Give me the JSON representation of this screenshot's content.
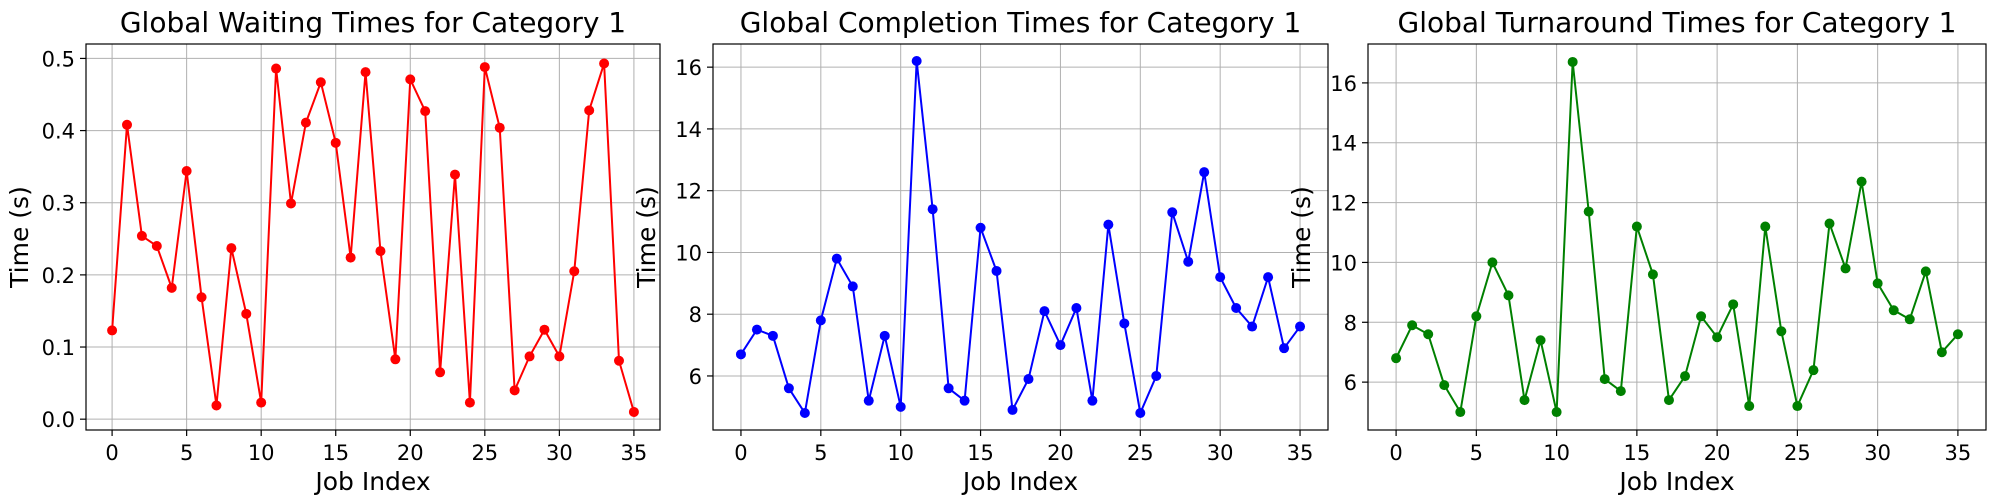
{
  "chart_data": [
    {
      "type": "line",
      "title": "Global Waiting Times for Category 1",
      "xlabel": "Job Index",
      "ylabel": "Time (s)",
      "color": "#ff0000",
      "grid": true,
      "xlim": [
        -1.75,
        36.75
      ],
      "ylim": [
        -0.015,
        0.52
      ],
      "xticks": [
        0,
        5,
        10,
        15,
        20,
        25,
        30,
        35
      ],
      "yticks": [
        0.0,
        0.1,
        0.2,
        0.3,
        0.4,
        0.5
      ],
      "tick_decimals": 1,
      "series": [
        {
          "x": [
            0,
            1,
            2,
            3,
            4,
            5,
            6,
            7,
            8,
            9,
            10,
            11,
            12,
            13,
            14,
            15,
            16,
            17,
            18,
            19,
            20,
            21,
            22,
            23,
            24,
            25,
            26,
            27,
            28,
            29,
            30,
            31,
            32,
            33,
            34,
            35
          ],
          "values": [
            0.123,
            0.408,
            0.254,
            0.24,
            0.182,
            0.344,
            0.169,
            0.019,
            0.237,
            0.146,
            0.023,
            0.486,
            0.299,
            0.411,
            0.467,
            0.383,
            0.224,
            0.481,
            0.233,
            0.083,
            0.471,
            0.427,
            0.065,
            0.339,
            0.023,
            0.488,
            0.404,
            0.04,
            0.087,
            0.124,
            0.087,
            0.205,
            0.428,
            0.493,
            0.081,
            0.01
          ]
        }
      ]
    },
    {
      "type": "line",
      "title": "Global Completion Times for Category 1",
      "xlabel": "Job Index",
      "ylabel": "Time (s)",
      "color": "#0000ff",
      "grid": true,
      "xlim": [
        -1.75,
        36.75
      ],
      "ylim": [
        4.25,
        16.75
      ],
      "xticks": [
        0,
        5,
        10,
        15,
        20,
        25,
        30,
        35
      ],
      "yticks": [
        6,
        8,
        10,
        12,
        14,
        16
      ],
      "tick_decimals": 0,
      "series": [
        {
          "x": [
            0,
            1,
            2,
            3,
            4,
            5,
            6,
            7,
            8,
            9,
            10,
            11,
            12,
            13,
            14,
            15,
            16,
            17,
            18,
            19,
            20,
            21,
            22,
            23,
            24,
            25,
            26,
            27,
            28,
            29,
            30,
            31,
            32,
            33,
            34,
            35
          ],
          "values": [
            6.7,
            7.5,
            7.3,
            5.6,
            4.8,
            7.8,
            9.8,
            8.9,
            5.2,
            7.3,
            5.0,
            16.2,
            11.4,
            5.6,
            5.2,
            10.8,
            9.4,
            4.9,
            5.9,
            8.1,
            7.0,
            8.2,
            5.2,
            10.9,
            7.7,
            4.8,
            6.0,
            11.3,
            9.7,
            12.6,
            9.2,
            8.2,
            7.6,
            9.2,
            6.9,
            7.6
          ]
        }
      ]
    },
    {
      "type": "line",
      "title": "Global Turnaround Times for Category 1",
      "xlabel": "Job Index",
      "ylabel": "Time (s)",
      "color": "#008000",
      "grid": true,
      "xlim": [
        -1.75,
        36.75
      ],
      "ylim": [
        4.4,
        17.3
      ],
      "xticks": [
        0,
        5,
        10,
        15,
        20,
        25,
        30,
        35
      ],
      "yticks": [
        6,
        8,
        10,
        12,
        14,
        16
      ],
      "tick_decimals": 0,
      "series": [
        {
          "x": [
            0,
            1,
            2,
            3,
            4,
            5,
            6,
            7,
            8,
            9,
            10,
            11,
            12,
            13,
            14,
            15,
            16,
            17,
            18,
            19,
            20,
            21,
            22,
            23,
            24,
            25,
            26,
            27,
            28,
            29,
            30,
            31,
            32,
            33,
            34,
            35
          ],
          "values": [
            6.8,
            7.9,
            7.6,
            5.9,
            5.0,
            8.2,
            10.0,
            8.9,
            5.4,
            7.4,
            5.0,
            16.7,
            11.7,
            6.1,
            5.7,
            11.2,
            9.6,
            5.4,
            6.2,
            8.2,
            7.5,
            8.6,
            5.2,
            11.2,
            7.7,
            5.2,
            6.4,
            11.3,
            9.8,
            12.7,
            9.3,
            8.4,
            8.1,
            9.7,
            7.0,
            7.6
          ]
        }
      ]
    }
  ]
}
